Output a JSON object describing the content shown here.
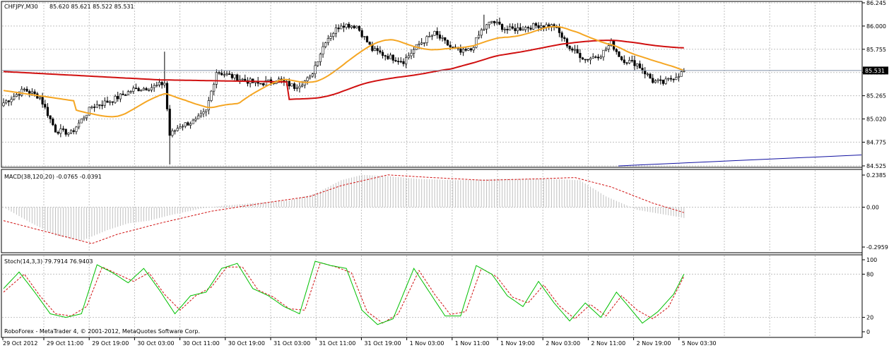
{
  "window": {
    "symbol_label": "CHFJPY,M30",
    "ohlc": "85.620 85.621 85.522 85.531",
    "copyright": "RoboForex - MetaTrader 4, © 2001-2012, MetaQuotes Software Corp."
  },
  "price_panel": {
    "ticks": [
      "86.245",
      "86.000",
      "85.755",
      "85.510",
      "85.265",
      "85.020",
      "84.775",
      "84.525"
    ],
    "current_price": "85.531",
    "current_price_value": 85.531,
    "ylim": [
      84.525,
      86.245
    ]
  },
  "macd_panel": {
    "label": "MACD(38,120,20) -0.0765 -0.0391",
    "ticks": [
      "0.2385",
      "0.00",
      "-0.2959"
    ]
  },
  "stoch_panel": {
    "label": "Stoch(14,3,3) 79.7914 76.9403",
    "ticks": [
      "100",
      "80",
      "20",
      "0"
    ]
  },
  "time_axis": {
    "labels": [
      "29 Oct 2012",
      "29 Oct 11:00",
      "29 Oct 19:00",
      "30 Oct 03:00",
      "30 Oct 11:00",
      "30 Oct 19:00",
      "31 Oct 03:00",
      "31 Oct 11:00",
      "31 Oct 19:00",
      "1 Nov 03:00",
      "1 Nov 11:00",
      "1 Nov 19:00",
      "2 Nov 03:00",
      "2 Nov 11:00",
      "2 Nov 19:00",
      "5 Nov 03:30"
    ]
  },
  "colors": {
    "grid": "#c0c0c0",
    "bull_candle": "#ffffff",
    "bear_candle": "#000000",
    "ma_fast": "#f5a623",
    "ma_slow": "#d01010",
    "trendline": "#1010a0",
    "macd_hist": "#c0c0c0",
    "macd_signal": "#d01010",
    "stoch_main": "#00c000",
    "stoch_signal": "#d01010",
    "price_tag_bg": "#000000"
  },
  "chart_data": {
    "type": "candlestick",
    "anchors": [
      [
        0,
        85.19
      ],
      [
        8,
        85.33
      ],
      [
        14,
        85.25
      ],
      [
        20,
        84.9
      ],
      [
        26,
        84.87
      ],
      [
        34,
        85.15
      ],
      [
        42,
        85.22
      ],
      [
        50,
        85.33
      ],
      [
        58,
        85.36
      ],
      [
        62,
        85.4
      ],
      [
        64,
        84.85
      ],
      [
        68,
        84.95
      ],
      [
        74,
        85.0
      ],
      [
        78,
        85.1
      ],
      [
        82,
        85.52
      ],
      [
        90,
        85.45
      ],
      [
        98,
        85.39
      ],
      [
        106,
        85.43
      ],
      [
        112,
        85.36
      ],
      [
        118,
        85.45
      ],
      [
        124,
        85.85
      ],
      [
        130,
        86.02
      ],
      [
        136,
        86.0
      ],
      [
        142,
        85.75
      ],
      [
        148,
        85.68
      ],
      [
        154,
        85.63
      ],
      [
        160,
        85.81
      ],
      [
        166,
        85.92
      ],
      [
        172,
        85.78
      ],
      [
        176,
        85.72
      ],
      [
        180,
        85.75
      ],
      [
        184,
        85.95
      ],
      [
        188,
        86.05
      ],
      [
        194,
        85.96
      ],
      [
        200,
        85.98
      ],
      [
        206,
        86.01
      ],
      [
        212,
        86.0
      ],
      [
        218,
        85.77
      ],
      [
        224,
        85.65
      ],
      [
        230,
        85.7
      ],
      [
        234,
        85.82
      ],
      [
        238,
        85.65
      ],
      [
        244,
        85.6
      ],
      [
        250,
        85.42
      ],
      [
        254,
        85.4
      ],
      [
        262,
        85.52
      ]
    ],
    "n_bars": 263,
    "macd_hist_pts": [
      [
        0,
        0
      ],
      [
        10,
        -0.11
      ],
      [
        20,
        -0.21
      ],
      [
        30,
        -0.25
      ],
      [
        40,
        -0.17
      ],
      [
        48,
        -0.12
      ],
      [
        56,
        -0.1
      ],
      [
        64,
        -0.06
      ],
      [
        76,
        -0.01
      ],
      [
        84,
        0.01
      ],
      [
        96,
        0.03
      ],
      [
        110,
        0.05
      ],
      [
        120,
        0.1
      ],
      [
        130,
        0.2
      ],
      [
        138,
        0.24
      ],
      [
        148,
        0.23
      ],
      [
        160,
        0.21
      ],
      [
        175,
        0.2
      ],
      [
        190,
        0.21
      ],
      [
        210,
        0.21
      ],
      [
        222,
        0.2
      ],
      [
        232,
        0.08
      ],
      [
        244,
        -0.02
      ],
      [
        262,
        -0.08
      ]
    ],
    "macd_signal_pts": [
      [
        0,
        -0.1
      ],
      [
        20,
        -0.2
      ],
      [
        34,
        -0.27
      ],
      [
        44,
        -0.2
      ],
      [
        60,
        -0.12
      ],
      [
        80,
        -0.03
      ],
      [
        100,
        0.03
      ],
      [
        118,
        0.08
      ],
      [
        130,
        0.16
      ],
      [
        148,
        0.24
      ],
      [
        165,
        0.22
      ],
      [
        185,
        0.2
      ],
      [
        205,
        0.21
      ],
      [
        220,
        0.22
      ],
      [
        234,
        0.15
      ],
      [
        250,
        0.03
      ],
      [
        262,
        -0.04
      ]
    ],
    "stoch_main_pts": [
      [
        0,
        60
      ],
      [
        6,
        83
      ],
      [
        12,
        55
      ],
      [
        18,
        25
      ],
      [
        24,
        20
      ],
      [
        30,
        25
      ],
      [
        36,
        93
      ],
      [
        42,
        82
      ],
      [
        48,
        68
      ],
      [
        54,
        88
      ],
      [
        60,
        58
      ],
      [
        66,
        25
      ],
      [
        72,
        50
      ],
      [
        78,
        55
      ],
      [
        84,
        88
      ],
      [
        90,
        95
      ],
      [
        96,
        60
      ],
      [
        102,
        50
      ],
      [
        108,
        35
      ],
      [
        114,
        25
      ],
      [
        120,
        98
      ],
      [
        126,
        92
      ],
      [
        132,
        88
      ],
      [
        138,
        30
      ],
      [
        144,
        10
      ],
      [
        150,
        18
      ],
      [
        158,
        88
      ],
      [
        164,
        55
      ],
      [
        170,
        22
      ],
      [
        176,
        22
      ],
      [
        182,
        92
      ],
      [
        188,
        80
      ],
      [
        194,
        50
      ],
      [
        200,
        35
      ],
      [
        206,
        70
      ],
      [
        212,
        40
      ],
      [
        218,
        15
      ],
      [
        224,
        40
      ],
      [
        230,
        20
      ],
      [
        236,
        55
      ],
      [
        240,
        38
      ],
      [
        246,
        12
      ],
      [
        252,
        28
      ],
      [
        258,
        52
      ],
      [
        262,
        80
      ]
    ],
    "stoch_signal_pts": [
      [
        0,
        55
      ],
      [
        8,
        80
      ],
      [
        14,
        50
      ],
      [
        20,
        25
      ],
      [
        26,
        22
      ],
      [
        32,
        35
      ],
      [
        38,
        90
      ],
      [
        44,
        80
      ],
      [
        50,
        70
      ],
      [
        56,
        82
      ],
      [
        62,
        52
      ],
      [
        68,
        30
      ],
      [
        74,
        50
      ],
      [
        80,
        62
      ],
      [
        86,
        90
      ],
      [
        92,
        90
      ],
      [
        98,
        58
      ],
      [
        104,
        48
      ],
      [
        110,
        32
      ],
      [
        116,
        30
      ],
      [
        122,
        96
      ],
      [
        128,
        90
      ],
      [
        134,
        82
      ],
      [
        140,
        28
      ],
      [
        146,
        12
      ],
      [
        152,
        25
      ],
      [
        160,
        85
      ],
      [
        166,
        52
      ],
      [
        172,
        24
      ],
      [
        178,
        28
      ],
      [
        184,
        88
      ],
      [
        190,
        76
      ],
      [
        196,
        48
      ],
      [
        202,
        40
      ],
      [
        208,
        65
      ],
      [
        214,
        36
      ],
      [
        220,
        18
      ],
      [
        226,
        38
      ],
      [
        232,
        22
      ],
      [
        238,
        50
      ],
      [
        244,
        30
      ],
      [
        250,
        18
      ],
      [
        256,
        34
      ],
      [
        262,
        77
      ]
    ],
    "trendline": [
      [
        218,
        84.525
      ],
      [
        305,
        84.65
      ]
    ]
  }
}
